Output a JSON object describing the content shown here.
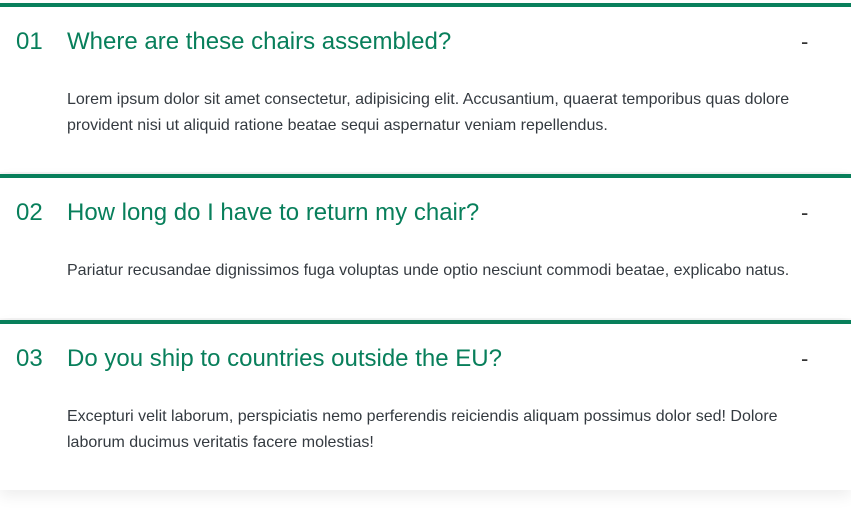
{
  "faq": {
    "items": [
      {
        "number": "01",
        "question": "Where are these chairs assembled?",
        "answer": "Lorem ipsum dolor sit amet consectetur, adipisicing elit. Accusantium, quaerat temporibus quas dolore provident nisi ut aliquid ratione beatae sequi aspernatur veniam repellendus.",
        "toggle": "-"
      },
      {
        "number": "02",
        "question": "How long do I have to return my chair?",
        "answer": "Pariatur recusandae dignissimos fuga voluptas unde optio nesciunt commodi beatae, explicabo natus.",
        "toggle": "-"
      },
      {
        "number": "03",
        "question": "Do you ship to countries outside the EU?",
        "answer": "Excepturi velit laborum, perspiciatis nemo perferendis reiciendis aliquam possimus dolor sed! Dolore laborum ducimus veritatis facere molestias!",
        "toggle": "-"
      }
    ]
  },
  "colors": {
    "accent": "#087f5b",
    "text": "#343a40"
  },
  "icons": {
    "toggle": "minus-icon"
  }
}
